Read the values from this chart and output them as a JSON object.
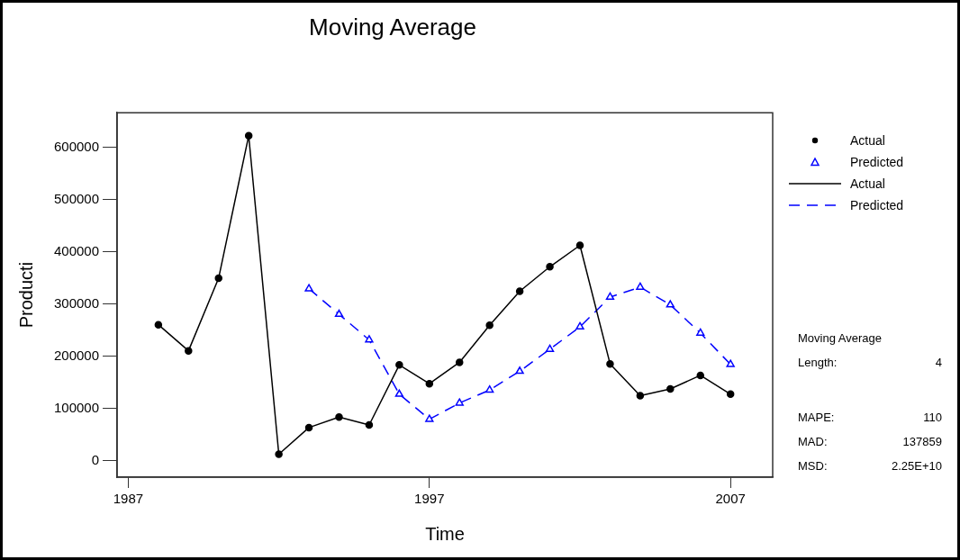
{
  "chart_data": {
    "type": "line",
    "title": "Moving Average",
    "xlabel": "Time",
    "ylabel": "Producti",
    "xlim": [
      1986.63,
      2008.4
    ],
    "xticks": [
      1987,
      1997,
      2007
    ],
    "ylim": [
      -32000,
      666000
    ],
    "yticks": [
      0,
      100000,
      200000,
      300000,
      400000,
      500000,
      600000
    ],
    "legend": "top right",
    "series": [
      {
        "name": "Actual",
        "color": "#000000",
        "marker": "circle",
        "line_style": "solid",
        "x": [
          1988,
          1989,
          1990,
          1991,
          1992,
          1993,
          1994,
          1995,
          1996,
          1997,
          1998,
          1999,
          2000,
          2001,
          2002,
          2003,
          2004,
          2005,
          2006,
          2007
        ],
        "values": [
          260000,
          210000,
          349000,
          622000,
          12000,
          63000,
          83000,
          68000,
          183000,
          147000,
          188000,
          259000,
          324000,
          371000,
          412000,
          185000,
          124000,
          137000,
          163000,
          127000
        ]
      },
      {
        "name": "Predicted",
        "color": "#0000ff",
        "marker": "triangle",
        "line_style": "dashed",
        "x": [
          1993,
          1994,
          1995,
          1996,
          1997,
          1998,
          1999,
          2000,
          2001,
          2002,
          2003,
          2004,
          2005,
          2006,
          2007
        ],
        "values": [
          329000,
          280000,
          231000,
          127000,
          79000,
          110000,
          135000,
          171000,
          213000,
          256000,
          313000,
          332000,
          298000,
          244000,
          184000
        ]
      }
    ],
    "annotations": [
      "Moving Average",
      "Length: 4",
      "MAPE: 110",
      "MAD: 137859",
      "MSD: 2.25E+10"
    ]
  }
}
